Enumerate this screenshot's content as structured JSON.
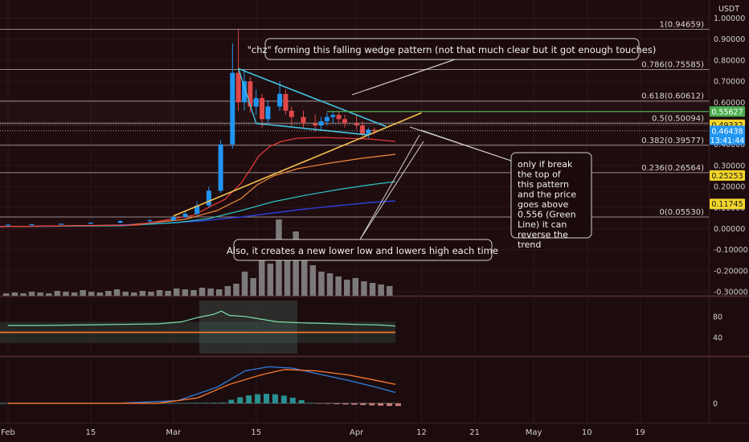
{
  "chart_data": [
    {
      "type": "candlestick",
      "currency": "USDT",
      "y_ticks": [
        "1.00000",
        "0.90000",
        "0.80000",
        "0.70000",
        "0.60000",
        "0.50000",
        "0.40000",
        "0.30000",
        "0.20000",
        "0.10000",
        "0.00000",
        "-0.10000",
        "-0.20000",
        "-0.30000"
      ],
      "ylim": [
        -0.3,
        1.05
      ],
      "x_ticks": [
        "Feb",
        "15",
        "Mar",
        "15",
        "Apr",
        "12",
        "21",
        "May",
        "10",
        "19"
      ],
      "x_tick_dates": [
        "2021-02-01",
        "2021-02-15",
        "2021-03-01",
        "2021-03-15",
        "2021-04-01",
        "2021-04-12",
        "2021-04-21",
        "2021-05-01",
        "2021-05-10",
        "2021-05-19"
      ],
      "candles": [
        {
          "date": "2021-02-01",
          "open": 0.018,
          "high": 0.02,
          "low": 0.017,
          "close": 0.019
        },
        {
          "date": "2021-02-05",
          "open": 0.019,
          "high": 0.022,
          "low": 0.018,
          "close": 0.021
        },
        {
          "date": "2021-02-10",
          "open": 0.021,
          "high": 0.025,
          "low": 0.02,
          "close": 0.023
        },
        {
          "date": "2021-02-15",
          "open": 0.023,
          "high": 0.03,
          "low": 0.022,
          "close": 0.028
        },
        {
          "date": "2021-02-20",
          "open": 0.028,
          "high": 0.04,
          "low": 0.027,
          "close": 0.036
        },
        {
          "date": "2021-02-25",
          "open": 0.036,
          "high": 0.045,
          "low": 0.03,
          "close": 0.04
        },
        {
          "date": "2021-03-01",
          "open": 0.04,
          "high": 0.06,
          "low": 0.038,
          "close": 0.055
        },
        {
          "date": "2021-03-03",
          "open": 0.055,
          "high": 0.08,
          "low": 0.05,
          "close": 0.07
        },
        {
          "date": "2021-03-05",
          "open": 0.07,
          "high": 0.13,
          "low": 0.065,
          "close": 0.11
        },
        {
          "date": "2021-03-07",
          "open": 0.11,
          "high": 0.2,
          "low": 0.1,
          "close": 0.18
        },
        {
          "date": "2021-03-09",
          "open": 0.18,
          "high": 0.42,
          "low": 0.17,
          "close": 0.4
        },
        {
          "date": "2021-03-11",
          "open": 0.4,
          "high": 0.88,
          "low": 0.38,
          "close": 0.74
        },
        {
          "date": "2021-03-12",
          "open": 0.74,
          "high": 0.946,
          "low": 0.56,
          "close": 0.6
        },
        {
          "date": "2021-03-13",
          "open": 0.6,
          "high": 0.76,
          "low": 0.56,
          "close": 0.7
        },
        {
          "date": "2021-03-14",
          "open": 0.7,
          "high": 0.72,
          "low": 0.55,
          "close": 0.58
        },
        {
          "date": "2021-03-15",
          "open": 0.58,
          "high": 0.66,
          "low": 0.54,
          "close": 0.62
        },
        {
          "date": "2021-03-16",
          "open": 0.62,
          "high": 0.64,
          "low": 0.48,
          "close": 0.52
        },
        {
          "date": "2021-03-17",
          "open": 0.52,
          "high": 0.61,
          "low": 0.5,
          "close": 0.58
        },
        {
          "date": "2021-03-19",
          "open": 0.58,
          "high": 0.7,
          "low": 0.56,
          "close": 0.64
        },
        {
          "date": "2021-03-20",
          "open": 0.64,
          "high": 0.66,
          "low": 0.54,
          "close": 0.56
        },
        {
          "date": "2021-03-21",
          "open": 0.56,
          "high": 0.58,
          "low": 0.49,
          "close": 0.53
        },
        {
          "date": "2021-03-23",
          "open": 0.53,
          "high": 0.56,
          "low": 0.48,
          "close": 0.5
        },
        {
          "date": "2021-03-25",
          "open": 0.5,
          "high": 0.54,
          "low": 0.46,
          "close": 0.49
        },
        {
          "date": "2021-03-26",
          "open": 0.49,
          "high": 0.53,
          "low": 0.47,
          "close": 0.51
        },
        {
          "date": "2021-03-27",
          "open": 0.51,
          "high": 0.55,
          "low": 0.49,
          "close": 0.53
        },
        {
          "date": "2021-03-28",
          "open": 0.53,
          "high": 0.56,
          "low": 0.5,
          "close": 0.54
        },
        {
          "date": "2021-03-29",
          "open": 0.54,
          "high": 0.56,
          "low": 0.5,
          "close": 0.52
        },
        {
          "date": "2021-03-30",
          "open": 0.52,
          "high": 0.54,
          "low": 0.48,
          "close": 0.5
        },
        {
          "date": "2021-04-01",
          "open": 0.5,
          "high": 0.54,
          "low": 0.47,
          "close": 0.49
        },
        {
          "date": "2021-04-02",
          "open": 0.49,
          "high": 0.51,
          "low": 0.44,
          "close": 0.45
        },
        {
          "date": "2021-04-03",
          "open": 0.45,
          "high": 0.48,
          "low": 0.43,
          "close": 0.47
        },
        {
          "date": "2021-04-04",
          "open": 0.47,
          "high": 0.48,
          "low": 0.45,
          "close": 0.464
        }
      ],
      "fibonacci": [
        {
          "label": "1(0.94659)",
          "value": 0.94659
        },
        {
          "label": "0.786(0.75585)",
          "value": 0.75585
        },
        {
          "label": "0.618(0.60612)",
          "value": 0.60612
        },
        {
          "label": "0.5(0.50094)",
          "value": 0.50094
        },
        {
          "label": "0.382(0.39577)",
          "value": 0.39577
        },
        {
          "label": "0.236(0.26564)",
          "value": 0.26564
        },
        {
          "label": "0(0.05530)",
          "value": 0.0553
        }
      ],
      "price_labels": [
        {
          "text": "0.55627",
          "value": 0.55627,
          "color": "#4caf50"
        },
        {
          "text": "0.49332",
          "value": 0.49332,
          "color": "#f2d62b"
        },
        {
          "text": "0.46438",
          "value": 0.46438,
          "color": "#2196f3"
        },
        {
          "text": "0.25253",
          "value": 0.25253,
          "color": "#f2d62b"
        },
        {
          "text": "0.11745",
          "value": 0.11745,
          "color": "#f2d62b"
        }
      ],
      "countdown": "13:41:44",
      "green_line": {
        "value": 0.55627,
        "from": "2021-03-27",
        "to": "2021-04-08"
      },
      "wedge_upper": [
        {
          "date": "2021-03-12",
          "value": 0.76
        },
        {
          "date": "2021-04-06",
          "value": 0.485
        }
      ],
      "wedge_lower": [
        {
          "date": "2021-03-15",
          "value": 0.5
        },
        {
          "date": "2021-04-03",
          "value": 0.445
        }
      ],
      "trendline": [
        {
          "date": "2021-03-01",
          "value": 0.06
        },
        {
          "date": "2021-04-12",
          "value": 0.55
        }
      ],
      "annotations": [
        {
          "text": "\"chz\" forming this falling wedge pattern (not that much clear but it got enough touches)"
        },
        {
          "text": "only if break the top of this pattern and the price goes above 0.556 (Green Line) it can reverse the trend"
        },
        {
          "text": "Also, it creates a new lower low and lowers high each time"
        }
      ],
      "colors": {
        "background": "#1d0b0d",
        "up": "#2196f3",
        "down": "#e04848",
        "wedge": "#40c4e0",
        "trendline": "#f2c14e",
        "green_line": "#4caf50"
      }
    },
    {
      "type": "line",
      "panel": "oscillator",
      "y_ticks": [
        "80",
        "40"
      ],
      "ylim": [
        10,
        110
      ],
      "series": [
        {
          "color": "#7de0a8",
          "values": [
            [
              0.02,
              63
            ],
            [
              0.1,
              63
            ],
            [
              0.2,
              64
            ],
            [
              0.3,
              65
            ],
            [
              0.4,
              66
            ],
            [
              0.46,
              70
            ],
            [
              0.5,
              78
            ],
            [
              0.54,
              84
            ],
            [
              0.56,
              90
            ],
            [
              0.58,
              82
            ],
            [
              0.62,
              80
            ],
            [
              0.66,
              75
            ],
            [
              0.7,
              70
            ],
            [
              0.76,
              68
            ],
            [
              0.82,
              67
            ],
            [
              0.9,
              65
            ],
            [
              0.96,
              64
            ],
            [
              1.0,
              62
            ]
          ]
        },
        {
          "color": "#ff7a2e",
          "values": [
            [
              0,
              50
            ],
            [
              1,
              50
            ]
          ]
        }
      ]
    },
    {
      "type": "line",
      "panel": "macd",
      "y_ticks": [
        "0"
      ],
      "ylim": [
        -0.06,
        0.16
      ],
      "series": [
        {
          "color": "#2f7de0",
          "values": [
            [
              0.02,
              0
            ],
            [
              0.3,
              0
            ],
            [
              0.45,
              0.01
            ],
            [
              0.55,
              0.06
            ],
            [
              0.62,
              0.12
            ],
            [
              0.68,
              0.135
            ],
            [
              0.74,
              0.13
            ],
            [
              0.8,
              0.11
            ],
            [
              0.88,
              0.085
            ],
            [
              0.95,
              0.06
            ],
            [
              1.0,
              0.04
            ]
          ]
        },
        {
          "color": "#ff7a2e",
          "values": [
            [
              0.02,
              0
            ],
            [
              0.4,
              0
            ],
            [
              0.5,
              0.02
            ],
            [
              0.58,
              0.07
            ],
            [
              0.66,
              0.105
            ],
            [
              0.72,
              0.125
            ],
            [
              0.8,
              0.12
            ],
            [
              0.88,
              0.105
            ],
            [
              0.95,
              0.085
            ],
            [
              1.0,
              0.07
            ]
          ]
        }
      ]
    }
  ]
}
